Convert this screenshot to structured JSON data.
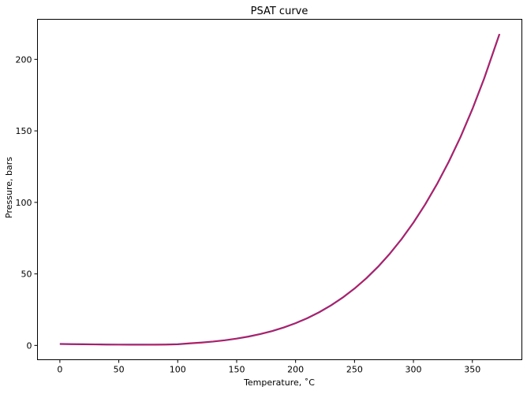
{
  "chart_data": {
    "type": "line",
    "title": "PSAT curve",
    "xlabel": "Temperature, ˚C",
    "ylabel": "Pressure, bars",
    "xlim": [
      -19,
      392
    ],
    "ylim": [
      -10,
      228
    ],
    "xticks": [
      0,
      50,
      100,
      150,
      200,
      250,
      300,
      350
    ],
    "yticks": [
      0,
      50,
      100,
      150,
      200
    ],
    "grid": false,
    "series": [
      {
        "color": "#1f3fd0",
        "x": [
          0,
          10,
          20,
          30,
          40,
          50,
          60,
          70,
          80,
          90,
          100,
          110,
          120,
          130,
          140,
          150,
          160,
          170,
          180,
          190,
          200,
          210,
          220,
          230,
          240,
          250,
          260,
          270,
          280,
          290,
          300,
          310,
          320,
          330,
          340,
          350,
          360,
          370,
          373
        ],
        "y": [
          1.0,
          0.9,
          0.8,
          0.7,
          0.62,
          0.56,
          0.53,
          0.52,
          0.54,
          0.6,
          0.8,
          1.43,
          1.99,
          2.7,
          3.61,
          4.76,
          6.18,
          7.92,
          10.03,
          12.55,
          15.55,
          19.08,
          23.2,
          27.97,
          33.47,
          39.76,
          46.92,
          55.03,
          64.17,
          74.42,
          85.88,
          98.65,
          112.8,
          128.5,
          145.8,
          165.2,
          186.6,
          210.5,
          217.7
        ]
      },
      {
        "color": "#e8103a",
        "x": [
          0,
          10,
          20,
          30,
          40,
          50,
          60,
          70,
          80,
          90,
          100,
          110,
          120,
          130,
          140,
          150,
          160,
          170,
          180,
          190,
          200,
          210,
          220,
          230,
          240,
          250,
          260,
          270,
          280,
          290,
          300,
          310,
          320,
          330,
          340,
          350,
          360,
          370,
          373
        ],
        "y": [
          1.0,
          0.9,
          0.8,
          0.7,
          0.62,
          0.56,
          0.53,
          0.52,
          0.54,
          0.6,
          0.8,
          1.43,
          1.99,
          2.7,
          3.61,
          4.76,
          6.18,
          7.92,
          10.03,
          12.55,
          15.55,
          19.08,
          23.2,
          27.97,
          33.47,
          39.76,
          46.92,
          55.03,
          64.17,
          74.42,
          85.88,
          98.65,
          112.8,
          128.5,
          145.8,
          165.2,
          186.6,
          210.5,
          217.7
        ]
      }
    ]
  }
}
